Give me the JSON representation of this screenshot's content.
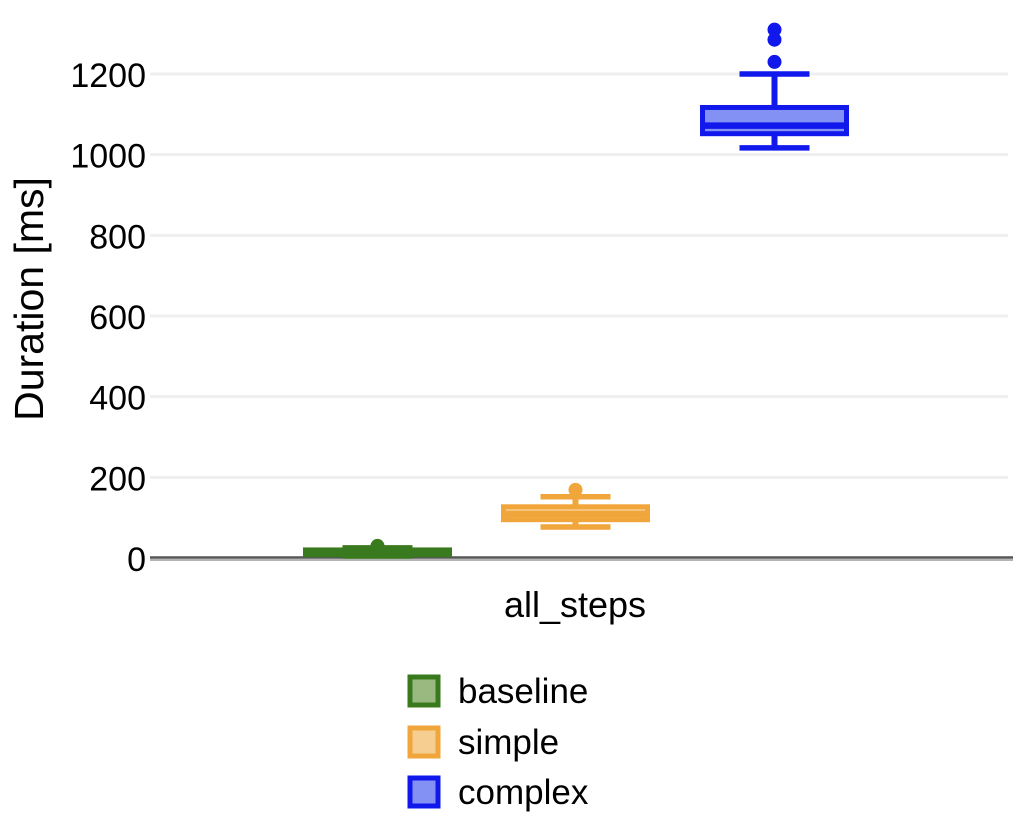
{
  "chart_data": {
    "type": "boxplot",
    "title": "",
    "x_label": "all_steps",
    "x_categories": [
      "all_steps"
    ],
    "ylabel": "Duration [ms]",
    "y_ticks": [
      0,
      200,
      400,
      600,
      800,
      1000,
      1200
    ],
    "y_tick_labels": [
      "0",
      "200",
      "400",
      "600",
      "800",
      "1000",
      "1200"
    ],
    "ylim": [
      0,
      1350
    ],
    "grid": true,
    "legend_position": "bottom-center",
    "colors": {
      "grid": "#EFEFEF",
      "axis_line": "#555555",
      "axis_line_shadow": "#9C9C9C",
      "text": "#000000",
      "background": "#FFFFFF"
    },
    "series": [
      {
        "name": "baseline",
        "color": "#3A7A1E",
        "fill": "#9AB981",
        "box": {
          "min": 5,
          "q1": 8,
          "median": 12,
          "q3": 20,
          "max": 25,
          "outliers": [
            30
          ]
        }
      },
      {
        "name": "simple",
        "color": "#F1A63C",
        "fill": "#F7CE92",
        "box": {
          "min": 77,
          "q1": 95,
          "median": 109,
          "q3": 127,
          "max": 152,
          "outliers": [
            169
          ]
        }
      },
      {
        "name": "complex",
        "color": "#1018EC",
        "fill": "#8491F4",
        "box": {
          "min": 1017,
          "q1": 1052,
          "median": 1072,
          "q3": 1117,
          "max": 1200,
          "outliers": [
            1230,
            1285,
            1310
          ]
        }
      }
    ]
  }
}
